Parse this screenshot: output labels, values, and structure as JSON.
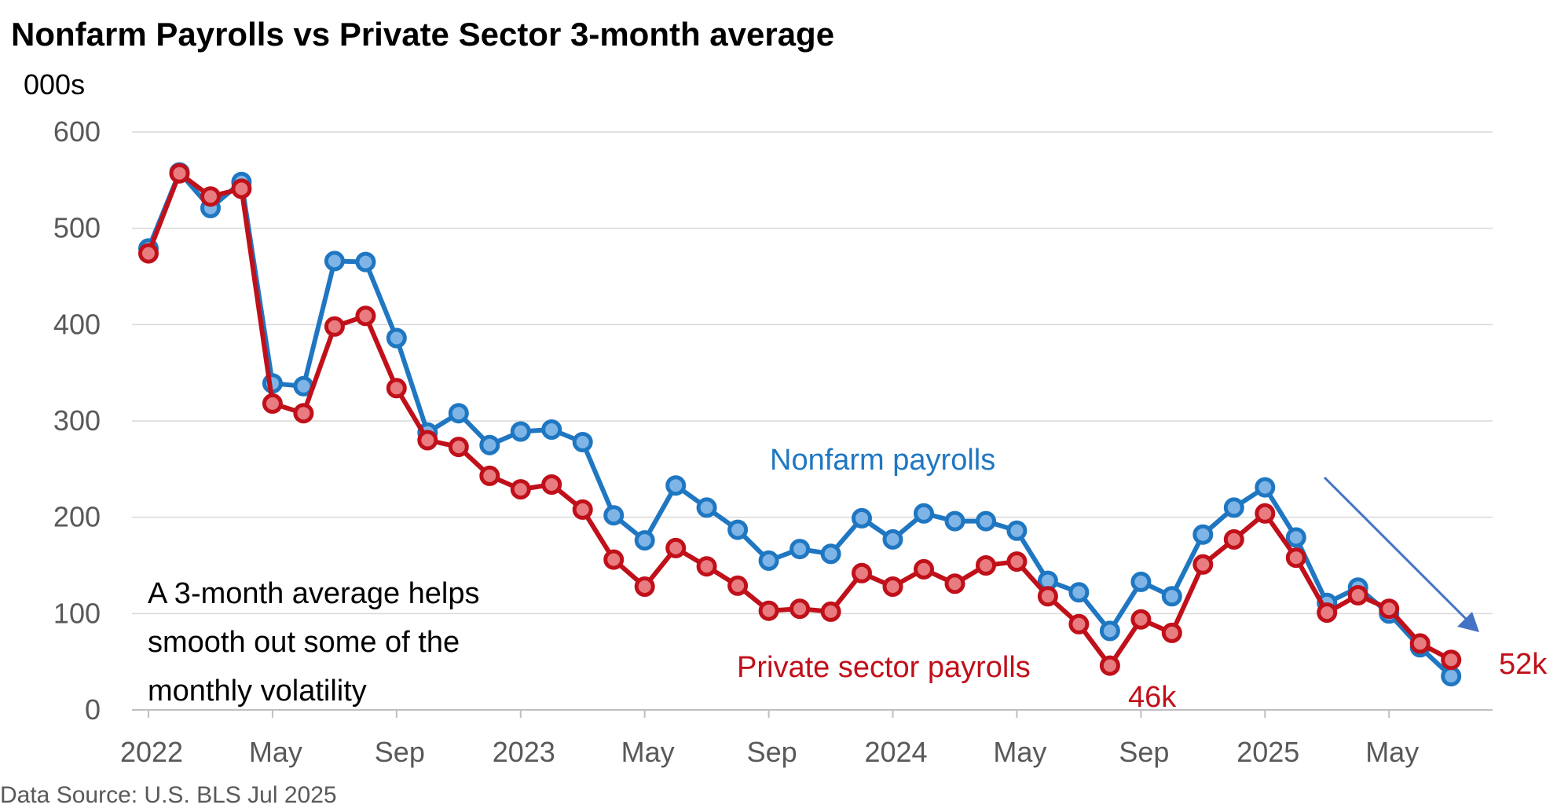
{
  "chart_data": {
    "type": "line",
    "title": "Nonfarm Payrolls vs Private Sector 3-month average",
    "ylabel": "000s",
    "ylim": [
      0,
      600
    ],
    "yticks": [
      0,
      100,
      200,
      300,
      400,
      500,
      600
    ],
    "grid": true,
    "x_tick_labels": [
      "2022",
      "May",
      "Sep",
      "2023",
      "May",
      "Sep",
      "2024",
      "May",
      "Sep",
      "2025",
      "May"
    ],
    "x_tick_index": [
      0,
      4,
      8,
      12,
      16,
      20,
      24,
      28,
      32,
      36,
      40
    ],
    "series": [
      {
        "name": "Nonfarm payrolls",
        "color": "#1F77C2",
        "values": [
          479,
          558,
          521,
          548,
          339,
          336,
          466,
          465,
          386,
          288,
          308,
          275,
          289,
          291,
          278,
          202,
          176,
          233,
          210,
          187,
          155,
          167,
          162,
          199,
          177,
          204,
          196,
          196,
          186,
          134,
          122,
          82,
          133,
          118,
          182,
          210,
          231,
          179,
          111,
          127,
          100,
          65,
          35
        ]
      },
      {
        "name": "Private sector payrolls",
        "color": "#C0101A",
        "values": [
          474,
          557,
          533,
          541,
          318,
          308,
          398,
          409,
          334,
          280,
          273,
          243,
          229,
          234,
          208,
          156,
          128,
          168,
          149,
          129,
          103,
          105,
          102,
          142,
          128,
          146,
          131,
          150,
          154,
          118,
          89,
          46,
          94,
          80,
          151,
          177,
          204,
          158,
          101,
          119,
          105,
          69,
          52
        ]
      }
    ],
    "annotations": {
      "note_lines": [
        "A 3-month average helps",
        "smooth out some of the",
        "monthly volatility"
      ],
      "series_label_nonfarm": "Nonfarm payrolls",
      "series_label_private": "Private sector payrolls",
      "low_label": "46k",
      "last_label": "52k"
    },
    "source": "Data Source: U.S. BLS Jul 2025"
  }
}
